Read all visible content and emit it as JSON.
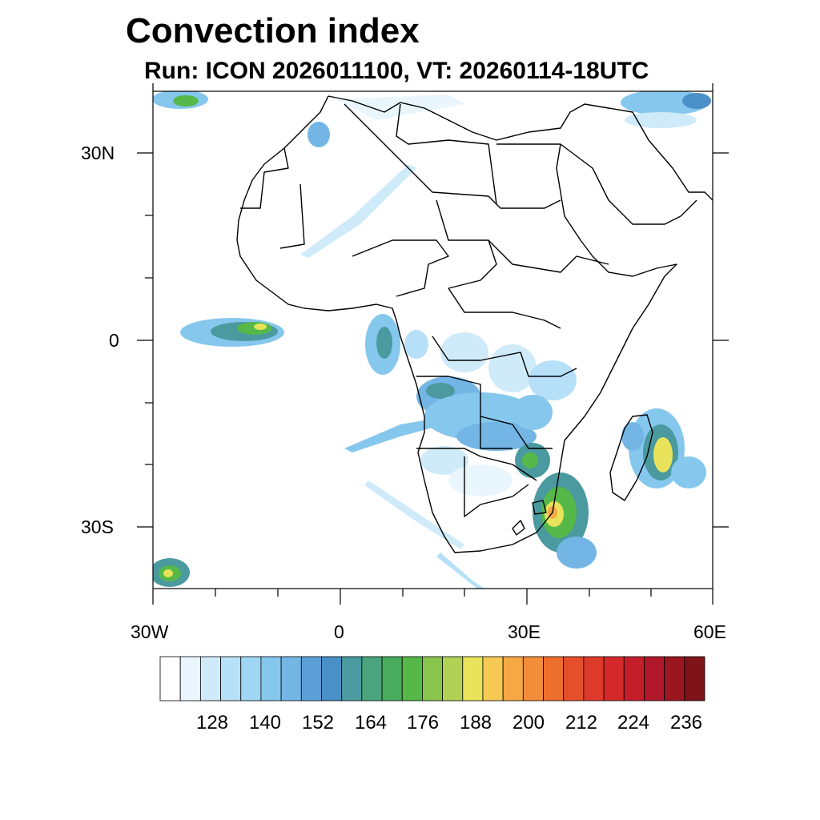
{
  "title": "Convection index",
  "subtitle": "Run: ICON 2026011100,  VT: 20260114-18UTC",
  "axes": {
    "x_labels": [
      "30W",
      "0",
      "30E",
      "60E"
    ],
    "y_labels": [
      "30N",
      "0",
      "30S"
    ]
  },
  "colorbar": {
    "colors": [
      "#ffffff",
      "#eaf6fd",
      "#cfebfa",
      "#b6e0f7",
      "#9ed6f4",
      "#86c7ee",
      "#73b6e6",
      "#5c9fd6",
      "#4a8fc8",
      "#4a9aa0",
      "#4aa57e",
      "#48ac5c",
      "#55b848",
      "#89c44c",
      "#b0d154",
      "#e8e35a",
      "#f6c854",
      "#f6a844",
      "#f28e3a",
      "#ee6e2e",
      "#e5502a",
      "#dd3a2c",
      "#d4282a",
      "#c41e2a",
      "#b0182a",
      "#9a1620",
      "#7e1418"
    ],
    "tick_labels": [
      "128",
      "140",
      "152",
      "164",
      "176",
      "188",
      "200",
      "212",
      "224",
      "236"
    ]
  },
  "colors": {
    "coast": "#000000",
    "light_blue": "#b6e0f7",
    "mid_blue": "#73b6e6",
    "teal": "#4a9aa0",
    "green": "#55b848",
    "yellow": "#e8e35a",
    "orange": "#f6a844",
    "red": "#e5502a"
  }
}
